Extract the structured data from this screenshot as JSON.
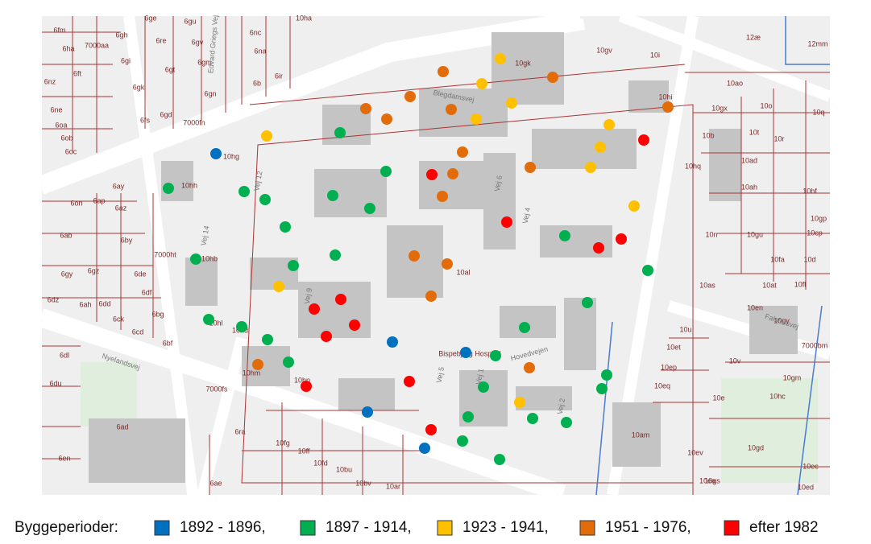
{
  "map": {
    "labels": [
      "6fm",
      "6ha",
      "6ft",
      "6nz",
      "6ne",
      "6oa",
      "6ob",
      "6oc",
      "6gh",
      "6gi",
      "6gk",
      "6fs",
      "6ge",
      "6re",
      "6gt",
      "6gd",
      "6gu",
      "6gv",
      "6gm",
      "6gn",
      "6nc",
      "6na",
      "6b",
      "6ir",
      "10ha",
      "7000aa",
      "7000fn",
      "10gk",
      "10gv",
      "10i",
      "12æ",
      "12mm",
      "10hi",
      "10ao",
      "10gx",
      "10o",
      "10q",
      "10t",
      "10r",
      "10b",
      "10hq",
      "10ad",
      "10ah",
      "10hf",
      "10gp",
      "10n",
      "10gu",
      "10cp",
      "10fa",
      "10d",
      "10as",
      "10at",
      "10fl",
      "10en",
      "10gy",
      "10u",
      "10et",
      "10ep",
      "10eq",
      "10v",
      "10gm",
      "10hc",
      "10e",
      "10am",
      "10gd",
      "10ev",
      "10gs",
      "10ea",
      "10ed",
      "10ec",
      "10hp",
      "10hh",
      "10hb",
      "10hl",
      "10hd",
      "10hm",
      "10hg",
      "10al",
      "6ay",
      "6on",
      "6ap",
      "6az",
      "6ab",
      "6by",
      "7000ht",
      "6de",
      "6gy",
      "6gz",
      "6df",
      "6dz",
      "6ah",
      "6dd",
      "6bg",
      "6ck",
      "6cd",
      "6bf",
      "6dl",
      "6du",
      "6ad",
      "6en",
      "6ra",
      "10fg",
      "10ff",
      "10fd",
      "10bu",
      "10bv",
      "10ar",
      "6ae",
      "7000fs",
      "7000bm",
      "Nyelandsvej",
      "Falstersvej",
      "Vej 12",
      "Vej 14",
      "Vej 9",
      "Vej 6",
      "Vej 4",
      "Vej 5",
      "Vej 1",
      "Vej 2",
      "Hovedvejen",
      "Blegdamsvej",
      "Edvard Griegs Vej",
      "Bispebjerg Hospital"
    ]
  },
  "legend": {
    "title": "Byggeperioder:",
    "items": [
      {
        "label": "1892 - 1896,",
        "color": "#0070c0"
      },
      {
        "label": "1897 - 1914,",
        "color": "#00b050"
      },
      {
        "label": "1923 - 1941,",
        "color": "#ffc000"
      },
      {
        "label": "1951 - 1976,",
        "color": "#e36c0a"
      },
      {
        "label": "efter 1982",
        "color": "#ff0000"
      }
    ]
  }
}
